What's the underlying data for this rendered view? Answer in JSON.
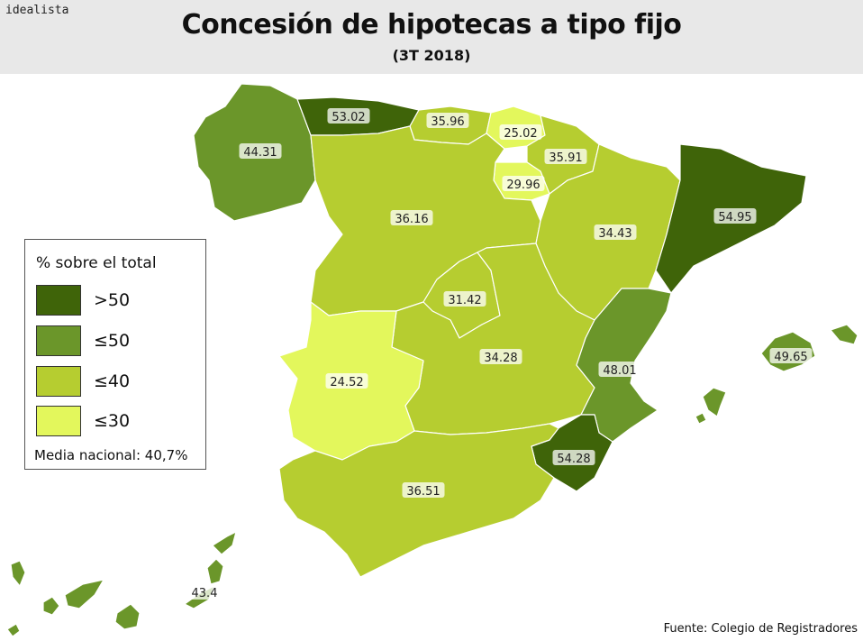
{
  "header": {
    "brand": "idealista",
    "title": "Concesión de hipotecas a tipo fijo",
    "subtitle": "(3T 2018)"
  },
  "legend": {
    "title": "% sobre el total",
    "items": [
      {
        "label": ">50",
        "color": "#3f6409"
      },
      {
        "label": "≤50",
        "color": "#6b962a"
      },
      {
        "label": "≤40",
        "color": "#b6cd30"
      },
      {
        "label": "≤30",
        "color": "#e3f75c"
      }
    ],
    "note": "Media nacional: 40,7%"
  },
  "regions": [
    {
      "name": "Galicia",
      "value": "44.31",
      "color": "#6b962a"
    },
    {
      "name": "Asturias",
      "value": "53.02",
      "color": "#3f6409"
    },
    {
      "name": "Cantabria",
      "value": "35.96",
      "color": "#b6cd30"
    },
    {
      "name": "País Vasco",
      "value": "25.02",
      "color": "#e3f75c"
    },
    {
      "name": "Navarra",
      "value": "35.91",
      "color": "#b6cd30"
    },
    {
      "name": "La Rioja",
      "value": "29.96",
      "color": "#e3f75c"
    },
    {
      "name": "Castilla y León",
      "value": "36.16",
      "color": "#b6cd30"
    },
    {
      "name": "Aragón",
      "value": "34.43",
      "color": "#b6cd30"
    },
    {
      "name": "Cataluña",
      "value": "54.95",
      "color": "#3f6409"
    },
    {
      "name": "Madrid",
      "value": "31.42",
      "color": "#b6cd30"
    },
    {
      "name": "Castilla-La Mancha",
      "value": "34.28",
      "color": "#b6cd30"
    },
    {
      "name": "Extremadura",
      "value": "24.52",
      "color": "#e3f75c"
    },
    {
      "name": "Comunidad Valenciana",
      "value": "48.01",
      "color": "#6b962a"
    },
    {
      "name": "Murcia",
      "value": "54.28",
      "color": "#3f6409"
    },
    {
      "name": "Andalucía",
      "value": "36.51",
      "color": "#b6cd30"
    },
    {
      "name": "Islas Baleares",
      "value": "49.65",
      "color": "#6b962a"
    },
    {
      "name": "Canarias",
      "value": "43.4",
      "color": "#6b962a"
    }
  ],
  "source": "Fuente: Colegio de Registradores"
}
